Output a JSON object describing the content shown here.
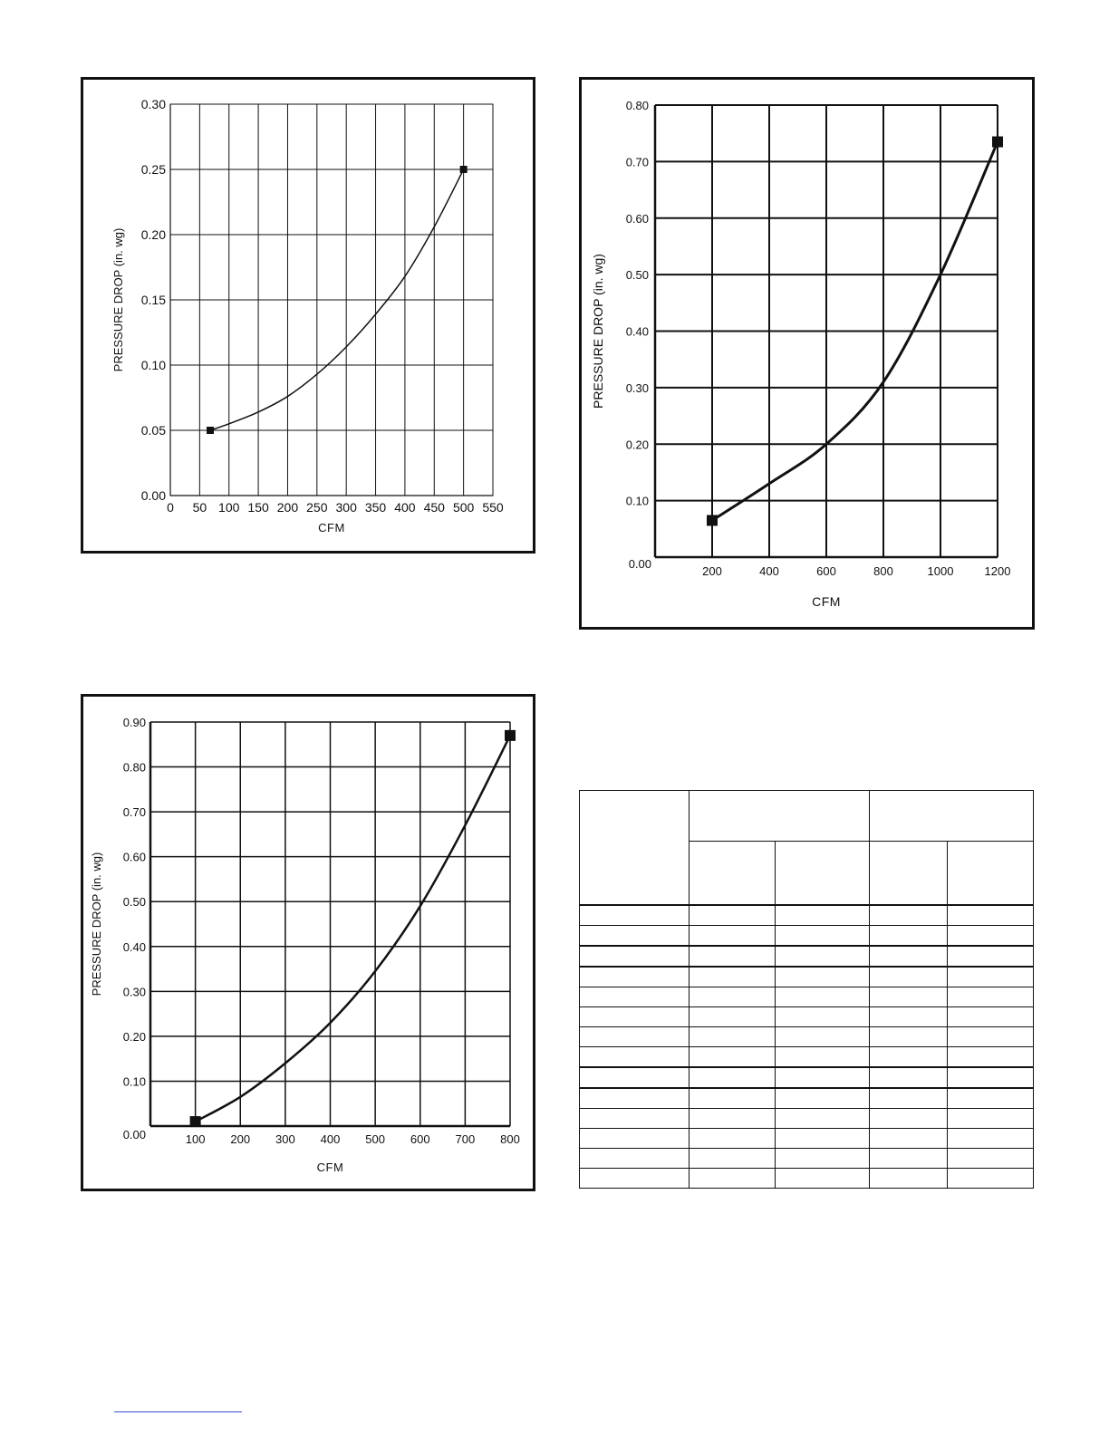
{
  "chart_data": [
    {
      "type": "line",
      "id": "chart-1",
      "xlabel": "CFM",
      "ylabel": "PRESSURE DROP (in. wg)",
      "xlim": [
        0,
        550
      ],
      "ylim": [
        0,
        0.3
      ],
      "x_ticks": [
        0,
        50,
        100,
        150,
        200,
        250,
        300,
        350,
        400,
        450,
        500,
        550
      ],
      "x_tick_labels": [
        "0",
        "50",
        "100",
        "150",
        "200",
        "250",
        "300",
        "350",
        "400",
        "450",
        "500",
        "550"
      ],
      "y_ticks": [
        0,
        0.05,
        0.1,
        0.15,
        0.2,
        0.25,
        0.3
      ],
      "y_tick_labels": [
        "0.00",
        "0.05",
        "0.10",
        "0.15",
        "0.20",
        "0.25",
        "0.30"
      ],
      "grid": true,
      "series": [
        {
          "x": [
            68,
            100,
            150,
            200,
            250,
            300,
            350,
            400,
            450,
            500
          ],
          "y": [
            0.05,
            0.055,
            0.064,
            0.076,
            0.093,
            0.114,
            0.139,
            0.168,
            0.206,
            0.25
          ],
          "markers_x": [
            68,
            500
          ],
          "markers_y": [
            0.05,
            0.25
          ]
        }
      ]
    },
    {
      "type": "line",
      "id": "chart-2",
      "xlabel": "CFM",
      "ylabel": "PRESSURE DROP (in. wg)",
      "xlim": [
        0,
        1200
      ],
      "ylim": [
        0,
        0.8
      ],
      "x_ticks": [
        200,
        400,
        600,
        800,
        1000,
        1200
      ],
      "x_tick_labels": [
        "200",
        "400",
        "600",
        "800",
        "1000",
        "1200"
      ],
      "y_ticks": [
        0,
        0.1,
        0.2,
        0.3,
        0.4,
        0.5,
        0.6,
        0.7,
        0.8
      ],
      "y_tick_labels": [
        "0.00",
        "0.10",
        "0.20",
        "0.30",
        "0.40",
        "0.50",
        "0.60",
        "0.70",
        "0.80"
      ],
      "grid": true,
      "series": [
        {
          "x": [
            200,
            400,
            600,
            800,
            1000,
            1200
          ],
          "y": [
            0.065,
            0.13,
            0.2,
            0.31,
            0.5,
            0.735
          ],
          "markers_x": [
            200,
            1200
          ],
          "markers_y": [
            0.065,
            0.735
          ]
        }
      ]
    },
    {
      "type": "line",
      "id": "chart-3",
      "xlabel": "CFM",
      "ylabel": "PRESSURE DROP (in. wg)",
      "xlim": [
        0,
        800
      ],
      "ylim": [
        0,
        0.9
      ],
      "x_ticks": [
        100,
        200,
        300,
        400,
        500,
        600,
        700,
        800
      ],
      "x_tick_labels": [
        "100",
        "200",
        "300",
        "400",
        "500",
        "600",
        "700",
        "800"
      ],
      "y_ticks": [
        0,
        0.1,
        0.2,
        0.3,
        0.4,
        0.5,
        0.6,
        0.7,
        0.8,
        0.9
      ],
      "y_tick_labels": [
        "0.00",
        "0.10",
        "0.20",
        "0.30",
        "0.40",
        "0.50",
        "0.60",
        "0.70",
        "0.80",
        "0.90"
      ],
      "grid": true,
      "series": [
        {
          "x": [
            100,
            200,
            300,
            400,
            500,
            600,
            700,
            800
          ],
          "y": [
            0.01,
            0.065,
            0.14,
            0.23,
            0.345,
            0.49,
            0.67,
            0.87
          ],
          "markers_x": [
            100,
            800
          ],
          "markers_y": [
            0.01,
            0.87
          ]
        }
      ]
    }
  ],
  "table": {
    "body_rows": 14,
    "thick_rows": [
      0,
      2,
      3,
      8,
      9
    ]
  }
}
